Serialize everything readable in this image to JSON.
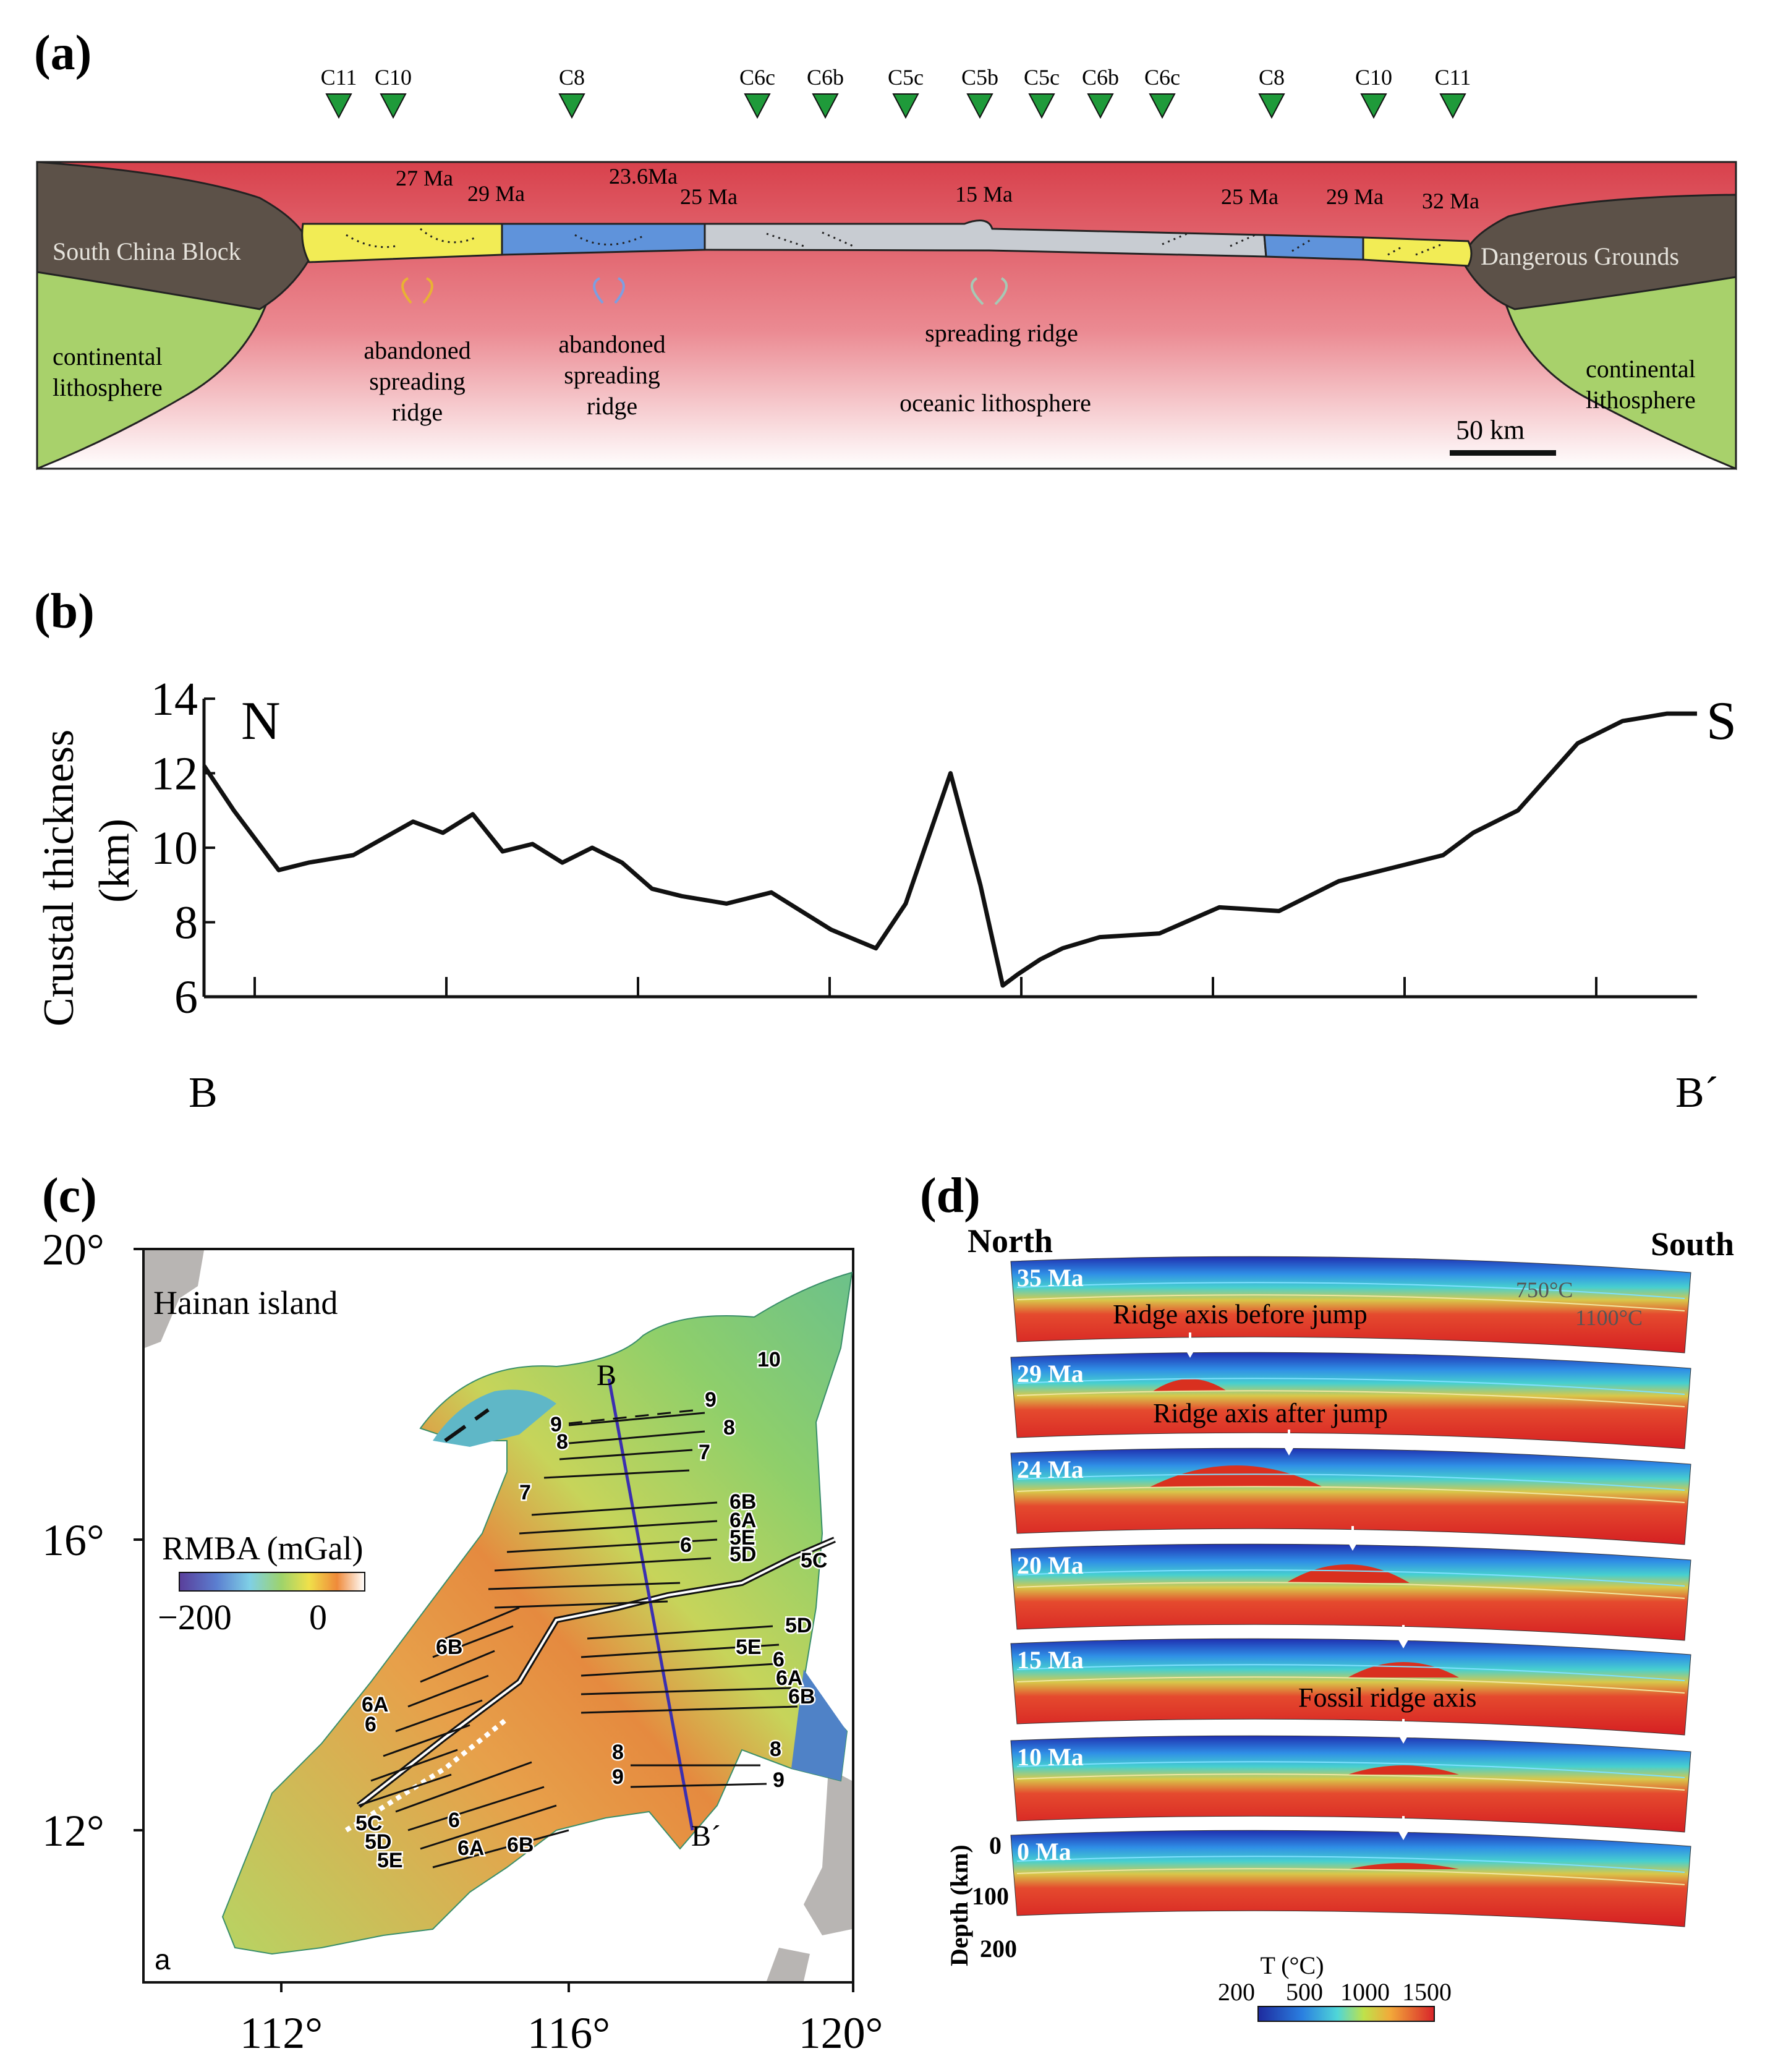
{
  "colors": {
    "brown": "#5a4f45",
    "green": "#a9d36a",
    "yellow": "#f2ee5a",
    "blue": "#5f93db",
    "gray": "#c8cbd0",
    "ocean_red": "#d8454f",
    "marker": "#1f9a3a"
  },
  "panel_a": {
    "label": "(a)",
    "chrons": [
      "C11",
      "C10",
      "C8",
      "C6c",
      "C6b",
      "C5c",
      "C5b",
      "C5c",
      "C6b",
      "C6c",
      "C8",
      "C10",
      "C11"
    ],
    "ages": [
      "27 Ma",
      "29 Ma",
      "23.6Ma",
      "25 Ma",
      "15 Ma",
      "25 Ma",
      "29 Ma",
      "32 Ma"
    ],
    "north_block": "South China Block",
    "south_block": "Dangerous Grounds",
    "cont_lith_1": [
      "continental",
      "lithosphere"
    ],
    "cont_lith_2": [
      "continental",
      "lithosphere"
    ],
    "abandoned_1": [
      "abandoned",
      "spreading",
      "ridge"
    ],
    "abandoned_2": [
      "abandoned",
      "spreading",
      "ridge"
    ],
    "spreading_ridge": "spreading ridge",
    "oceanic": "oceanic lithosphere",
    "scale": "50 km"
  },
  "panel_b": {
    "label": "(b)",
    "ylabel_1": "Crustal thickness",
    "ylabel_2": "(km)",
    "north": "N",
    "south": "S",
    "start": "B",
    "end": "B´",
    "chart_data": {
      "type": "line",
      "ylabel": "Crustal thickness (km)",
      "ylim": [
        6,
        14
      ],
      "yticks": [
        6,
        8,
        10,
        12,
        14
      ],
      "x": [
        0,
        0.02,
        0.05,
        0.07,
        0.1,
        0.14,
        0.16,
        0.18,
        0.2,
        0.22,
        0.24,
        0.26,
        0.28,
        0.3,
        0.32,
        0.35,
        0.38,
        0.42,
        0.45,
        0.47,
        0.5,
        0.52,
        0.535,
        0.545,
        0.56,
        0.575,
        0.6,
        0.64,
        0.68,
        0.72,
        0.76,
        0.8,
        0.83,
        0.85,
        0.88,
        0.92,
        0.95,
        0.98,
        1.0
      ],
      "y": [
        12.2,
        11.0,
        9.4,
        9.6,
        9.8,
        10.7,
        10.4,
        10.9,
        9.9,
        10.1,
        9.6,
        10.0,
        9.6,
        8.9,
        8.7,
        8.5,
        8.8,
        7.8,
        7.3,
        8.5,
        12.0,
        9.0,
        6.3,
        6.6,
        7.0,
        7.3,
        7.6,
        7.7,
        8.4,
        8.3,
        9.1,
        9.5,
        9.8,
        10.4,
        11.0,
        12.8,
        13.4,
        13.6,
        13.6
      ]
    }
  },
  "panel_c": {
    "label": "(c)",
    "hainan": "Hainan island",
    "legend_title": "RMBA (mGal)",
    "legend_ticks": [
      "−200",
      "0"
    ],
    "lat_labels": [
      "20°",
      "16°",
      "12°"
    ],
    "lon_labels": [
      "112°",
      "116°",
      "120°"
    ],
    "profile_start": "B",
    "profile_end": "B´",
    "corner": "a",
    "anomalies": [
      "10",
      "9",
      "8",
      "9",
      "8",
      "7",
      "7",
      "6B",
      "6A",
      "5E",
      "6",
      "5D",
      "5C",
      "5D",
      "5E",
      "6",
      "6A",
      "6B",
      "6B",
      "6A",
      "6",
      "5C",
      "5D",
      "5E",
      "6",
      "6A",
      "6B",
      "8",
      "8",
      "9",
      "9"
    ]
  },
  "panel_d": {
    "label": "(d)",
    "north": "North",
    "south": "South",
    "ages": [
      "35 Ma",
      "29 Ma",
      "24 Ma",
      "20 Ma",
      "15 Ma",
      "10 Ma",
      "0 Ma"
    ],
    "iso_750": "750°C",
    "iso_1100": "1100°C",
    "ann_before": "Ridge axis before jump",
    "ann_after": "Ridge axis after jump",
    "ann_fossil": "Fossil ridge axis",
    "depth_label": "Depth (km)",
    "depth_ticks": [
      "0",
      "100",
      "200"
    ],
    "temp_title": "T (°C)",
    "temp_ticks": [
      "200",
      "500",
      "1000",
      "1500"
    ]
  }
}
